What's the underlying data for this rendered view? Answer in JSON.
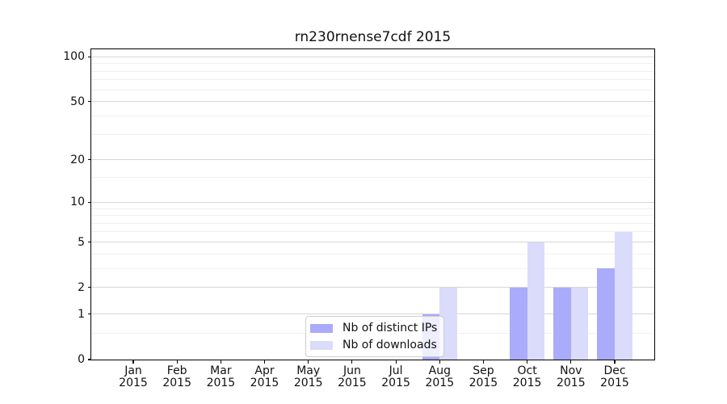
{
  "chart_data": {
    "type": "bar",
    "title": "rn230rnense7cdf 2015",
    "categories": [
      "Jan",
      "Feb",
      "Mar",
      "Apr",
      "May",
      "Jun",
      "Jul",
      "Aug",
      "Sep",
      "Oct",
      "Nov",
      "Dec"
    ],
    "category_year": "2015",
    "series": [
      {
        "name": "Nb of distinct IPs",
        "color": "#aaabfa",
        "values": [
          0,
          0,
          0,
          0,
          0,
          0,
          0,
          1,
          0,
          2,
          2,
          3
        ]
      },
      {
        "name": "Nb of downloads",
        "color": "#dbdbfb",
        "values": [
          0,
          0,
          0,
          0,
          0,
          0,
          0,
          2,
          0,
          5,
          2,
          6
        ]
      }
    ],
    "xlabel": "",
    "ylabel": "",
    "y_scale": "log10(1+x)",
    "ylim": [
      0,
      112
    ],
    "y_major_ticks": [
      0,
      1,
      2,
      5,
      10,
      20,
      50,
      100
    ],
    "y_minor_gridlines": [
      0.5,
      3,
      4,
      6,
      7,
      8,
      9,
      15,
      30,
      40,
      60,
      70,
      80,
      90
    ],
    "grid": true,
    "legend_position": "lower center",
    "colors": {
      "major_grid": "#d6d6d6",
      "minor_grid": "#f0f0f0",
      "axis": "#000000",
      "text": "#111111",
      "background": "#ffffff"
    }
  }
}
